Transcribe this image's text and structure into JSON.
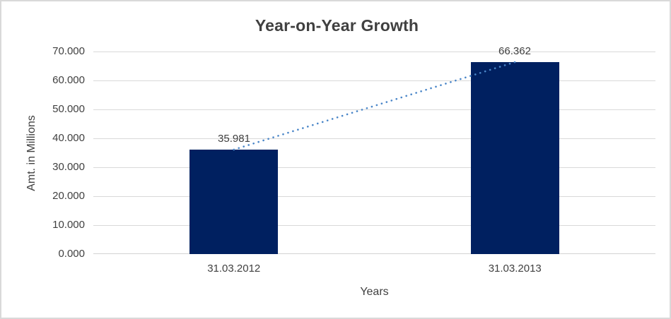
{
  "chart_data": {
    "type": "bar",
    "title": "Year-on-Year Growth",
    "xlabel": "Years",
    "ylabel": "Amt. in Millions",
    "categories": [
      "31.03.2012",
      "31.03.2013"
    ],
    "values": [
      35.981,
      66.362
    ],
    "data_labels": [
      "35.981",
      "66.362"
    ],
    "ylim": [
      0,
      70
    ],
    "ytick_step": 10,
    "yticks": [
      "70.000",
      "60.000",
      "50.000",
      "40.000",
      "30.000",
      "20.000",
      "10.000",
      "0.000"
    ],
    "grid": true,
    "legend": "none",
    "trendline": {
      "style": "dotted",
      "connects": [
        "31.03.2012",
        "31.03.2013"
      ],
      "color": "#4a86c8"
    },
    "colors": {
      "bar": "#002060",
      "gridline": "#d9d9d9",
      "axis_line": "#d3d3d3",
      "text": "#404040",
      "chart_border": "#d9d9d9",
      "background": "#ffffff"
    }
  }
}
